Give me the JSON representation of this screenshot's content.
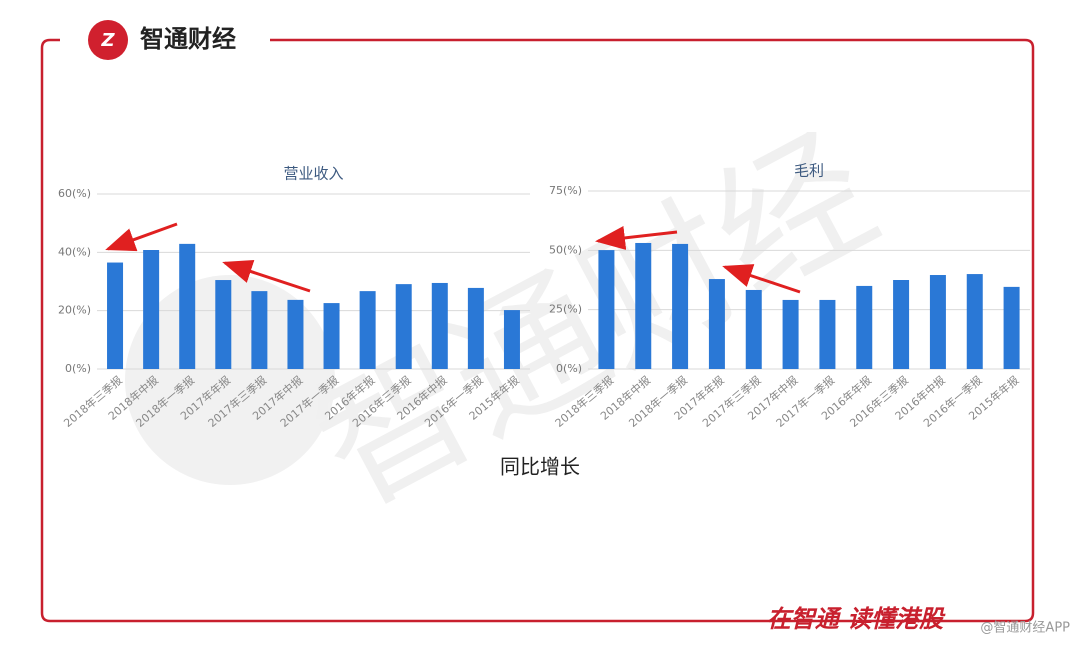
{
  "header": {
    "brand": "智通财经"
  },
  "caption": "同比增长",
  "watermark": "智通财经",
  "footer": {
    "slogan": "在智通 读懂港股",
    "source": "@智通财经APP"
  },
  "chart_data": [
    {
      "type": "bar",
      "title": "营业收入",
      "color": "#2a78d6",
      "categories": [
        "2018年三季报",
        "2018年中报",
        "2018年一季报",
        "2017年年报",
        "2017年三季报",
        "2017年中报",
        "2017年一季报",
        "2016年年报",
        "2016年三季报",
        "2016年中报",
        "2016年一季报",
        "2015年年报"
      ],
      "values": [
        36.5,
        40.8,
        42.9,
        30.5,
        26.7,
        23.7,
        22.6,
        26.7,
        29.1,
        29.5,
        27.8,
        20.2
      ],
      "ylim": [
        0,
        60
      ],
      "yticks": [
        {
          "value": 0,
          "label": "0(%)"
        },
        {
          "value": 20,
          "label": "20(%)"
        },
        {
          "value": 40,
          "label": "40(%)"
        },
        {
          "value": 60,
          "label": "60(%)"
        }
      ],
      "grid": true
    },
    {
      "type": "bar",
      "title": "毛利",
      "color": "#2a78d6",
      "categories": [
        "2018年三季报",
        "2018年中报",
        "2018年一季报",
        "2017年年报",
        "2017年三季报",
        "2017年中报",
        "2017年一季报",
        "2016年年报",
        "2016年三季报",
        "2016年中报",
        "2016年一季报",
        "2015年年报"
      ],
      "values": [
        50.1,
        53.1,
        52.7,
        37.9,
        33.3,
        29.1,
        29.1,
        35.0,
        37.5,
        39.6,
        40.0,
        34.6
      ],
      "ylim": [
        0,
        75
      ],
      "yticks": [
        {
          "value": 0,
          "label": "0(%)"
        },
        {
          "value": 25,
          "label": "25(%)"
        },
        {
          "value": 50,
          "label": "50(%)"
        },
        {
          "value": 75,
          "label": "75(%)"
        }
      ],
      "grid": true
    }
  ]
}
